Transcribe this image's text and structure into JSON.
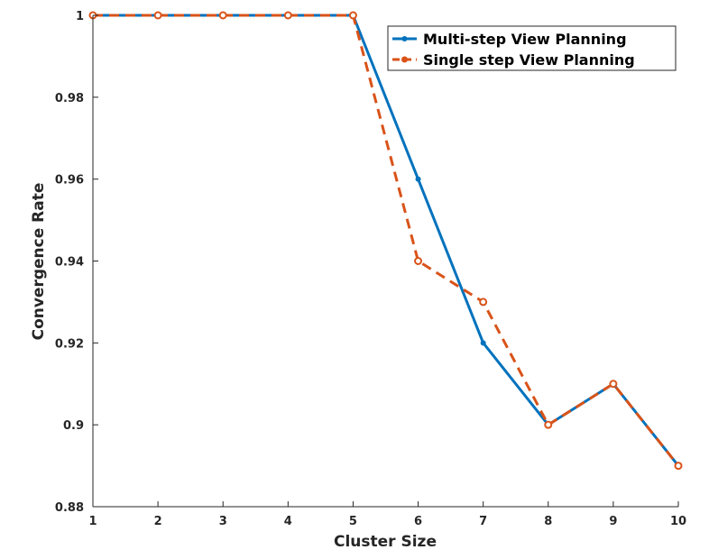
{
  "chart_data": {
    "type": "line",
    "xlabel": "Cluster Size",
    "ylabel": "Convergence Rate",
    "xlim": [
      1,
      10
    ],
    "ylim": [
      0.88,
      1
    ],
    "xticks": [
      "1",
      "2",
      "3",
      "4",
      "5",
      "6",
      "7",
      "8",
      "9",
      "10"
    ],
    "yticks": [
      "0.88",
      "0.9",
      "0.92",
      "0.94",
      "0.96",
      "0.98",
      "1"
    ],
    "grid": false,
    "legend_position": "top-right",
    "x": [
      1,
      2,
      3,
      4,
      5,
      6,
      7,
      8,
      9,
      10
    ],
    "series": [
      {
        "name": "Multi-step View Planning",
        "values": [
          1,
          1,
          1,
          1,
          1,
          0.96,
          0.92,
          0.9,
          0.91,
          0.89
        ],
        "color": "#0072BD",
        "line_style": "solid",
        "marker": "dot"
      },
      {
        "name": "Single step View Planning",
        "values": [
          1,
          1,
          1,
          1,
          1,
          0.94,
          0.93,
          0.9,
          0.91,
          0.89
        ],
        "color": "#D95319",
        "line_style": "dashed",
        "marker": "circle"
      }
    ]
  }
}
